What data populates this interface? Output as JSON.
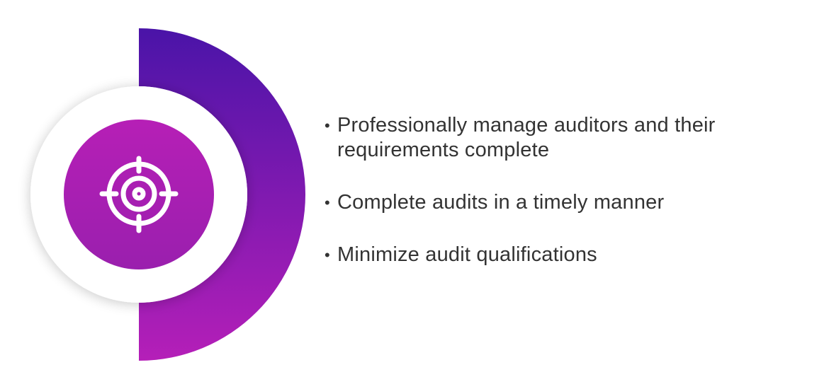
{
  "graphic": {
    "icon": "target-crosshair-icon",
    "colors": {
      "arc_top": "#4a14a8",
      "arc_bottom": "#b51fb8",
      "inner_circle_top": "#b61fb6",
      "inner_circle_bottom": "#9a1fae",
      "icon": "#ffffff",
      "ring_shadow": "#e6e6e6"
    }
  },
  "bullets": {
    "items": [
      {
        "bullet": "•",
        "text": "Professionally manage auditors and their requirements complete"
      },
      {
        "bullet": "•",
        "text": "Complete audits in a timely manner"
      },
      {
        "bullet": "•",
        "text": "Minimize audit qualifications"
      }
    ]
  }
}
